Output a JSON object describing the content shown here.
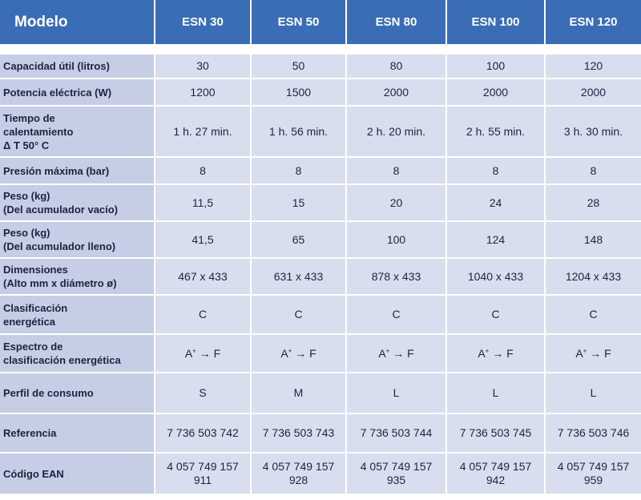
{
  "header": {
    "model_label": "Modelo",
    "models": [
      "ESN 30",
      "ESN 50",
      "ESN 80",
      "ESN 100",
      "ESN 120"
    ]
  },
  "rows": [
    {
      "label": [
        "Capacidad útil (litros)"
      ],
      "values": [
        "30",
        "50",
        "80",
        "100",
        "120"
      ]
    },
    {
      "label": [
        "Potencia eléctrica (W)"
      ],
      "values": [
        "1200",
        "1500",
        "2000",
        "2000",
        "2000"
      ]
    },
    {
      "label": [
        "Tiempo de",
        "calentamiento",
        "Δ T 50° C"
      ],
      "values": [
        "1 h. 27 min.",
        "1 h. 56 min.",
        "2 h. 20 min.",
        "2 h. 55 min.",
        "3 h. 30 min."
      ]
    },
    {
      "label": [
        "Presión máxima (bar)"
      ],
      "values": [
        "8",
        "8",
        "8",
        "8",
        "8"
      ]
    },
    {
      "label": [
        "Peso (kg)",
        "(Del acumulador vacío)"
      ],
      "values": [
        "11,5",
        "15",
        "20",
        "24",
        "28"
      ]
    },
    {
      "label": [
        "Peso (kg)",
        "(Del acumulador lleno)"
      ],
      "values": [
        "41,5",
        "65",
        "100",
        "124",
        "148"
      ]
    },
    {
      "label": [
        "Dimensiones",
        "(Alto mm x diámetro ø)"
      ],
      "values": [
        "467 x 433",
        "631 x 433",
        "878 x 433",
        "1040 x 433",
        "1204 x 433"
      ]
    },
    {
      "label": [
        "Clasificación",
        "energética"
      ],
      "values": [
        "C",
        "C",
        "C",
        "C",
        "C"
      ]
    },
    {
      "label": [
        "Espectro de",
        "clasificación energética"
      ],
      "values": [
        "A",
        "A",
        "A",
        "A",
        "A"
      ],
      "sup": "+",
      "suffix": " → F"
    },
    {
      "label": [
        "Perfil de consumo"
      ],
      "values": [
        "S",
        "M",
        "L",
        "L",
        "L"
      ]
    },
    {
      "label": [
        "Referencia"
      ],
      "values": [
        "7 736 503 742",
        "7 736 503 743",
        "7 736 503 744",
        "7 736 503 745",
        "7 736 503 746"
      ]
    },
    {
      "label": [
        "Código EAN"
      ],
      "values": [
        [
          "4 057 749 157",
          "911"
        ],
        [
          "4 057 749 157",
          "928"
        ],
        [
          "4 057 749 157",
          "935"
        ],
        [
          "4 057 749 157",
          "942"
        ],
        [
          "4 057 749 157",
          "959"
        ]
      ]
    }
  ]
}
